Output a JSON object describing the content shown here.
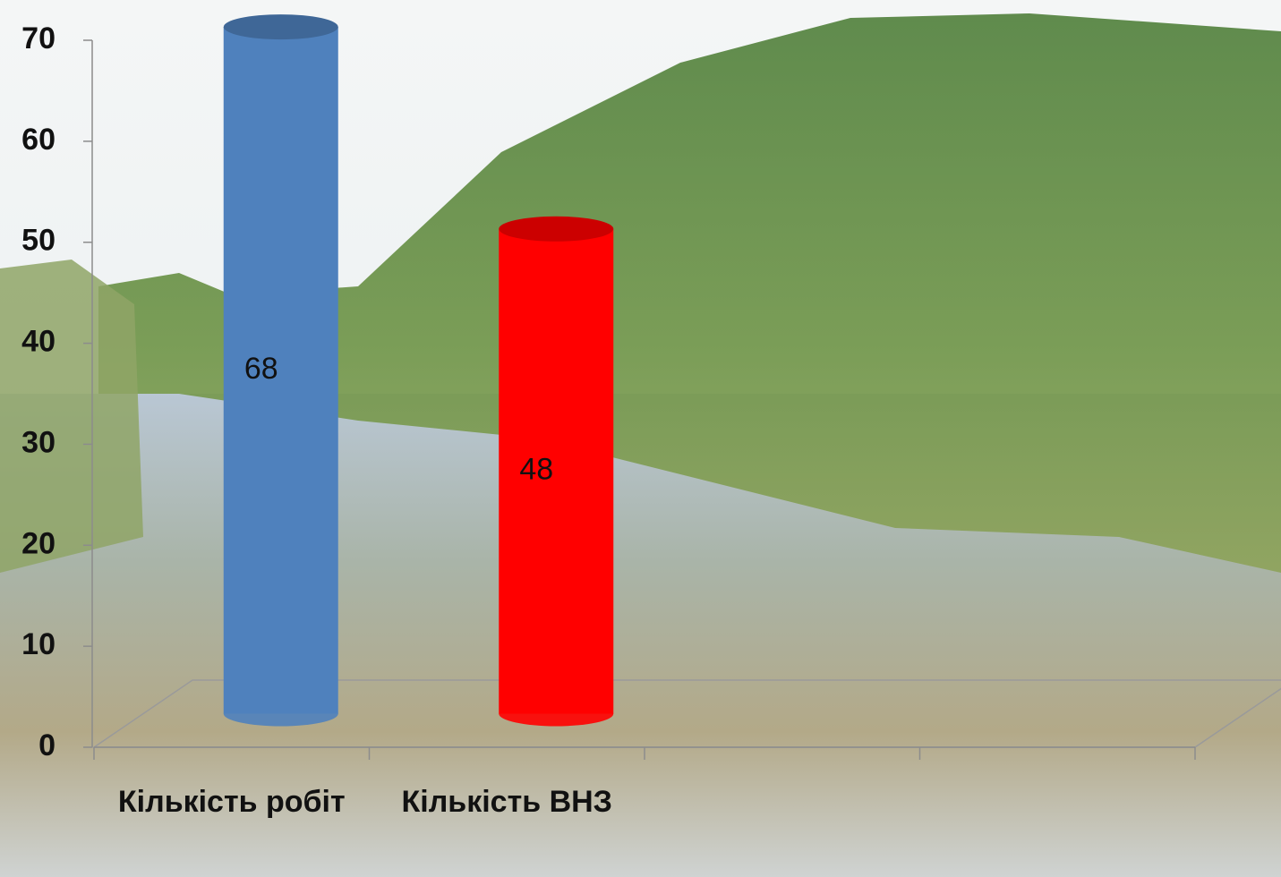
{
  "chart_data": {
    "type": "bar3d",
    "categories": [
      "Кількість робіт",
      "Кількість ВНЗ",
      null,
      null
    ],
    "values": [
      68,
      48,
      null,
      null
    ],
    "colors": [
      "#4f81bd",
      "#ff0000",
      null,
      null
    ],
    "ylim": [
      0,
      70
    ],
    "yticks": [
      0,
      10,
      20,
      30,
      40,
      50,
      60,
      70
    ]
  }
}
